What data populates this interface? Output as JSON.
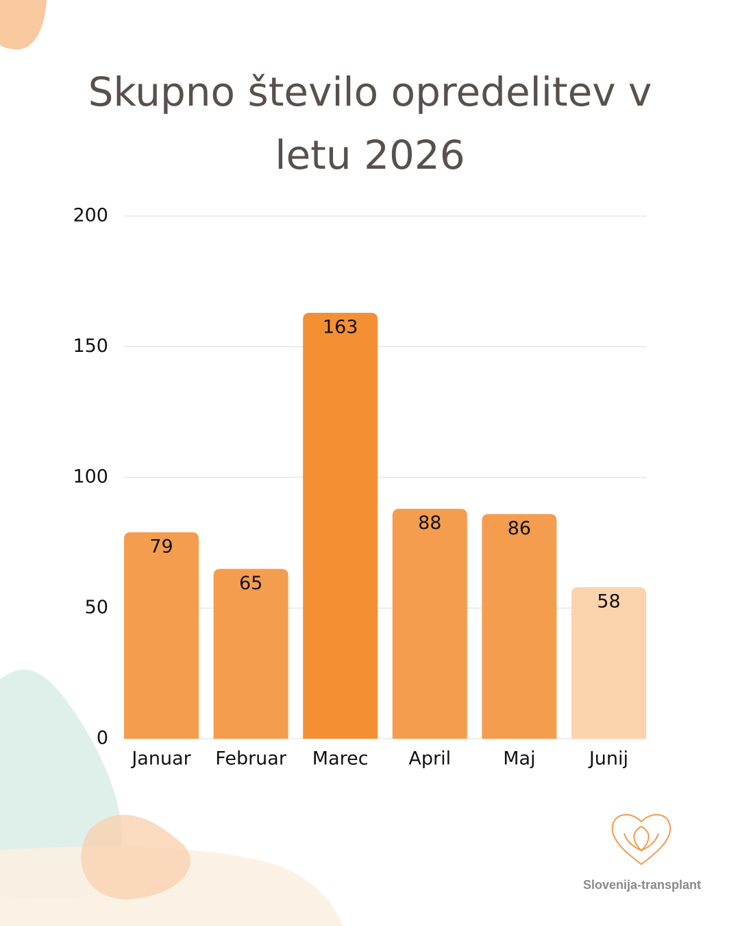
{
  "chart_data": {
    "type": "bar",
    "title": "Skupno število opredelitev v letu 2026",
    "categories": [
      "Januar",
      "Februar",
      "Marec",
      "April",
      "Maj",
      "Junij"
    ],
    "values": [
      79,
      65,
      163,
      88,
      86,
      58
    ],
    "colors": [
      "#f59d4f",
      "#f59d4f",
      "#f49033",
      "#f59d4f",
      "#f59d4f",
      "#fdd3ae"
    ],
    "ylim": [
      0,
      200
    ],
    "yticks": [
      0,
      50,
      100,
      150,
      200
    ],
    "grid": true
  },
  "brand": "Slovenija-transplant"
}
